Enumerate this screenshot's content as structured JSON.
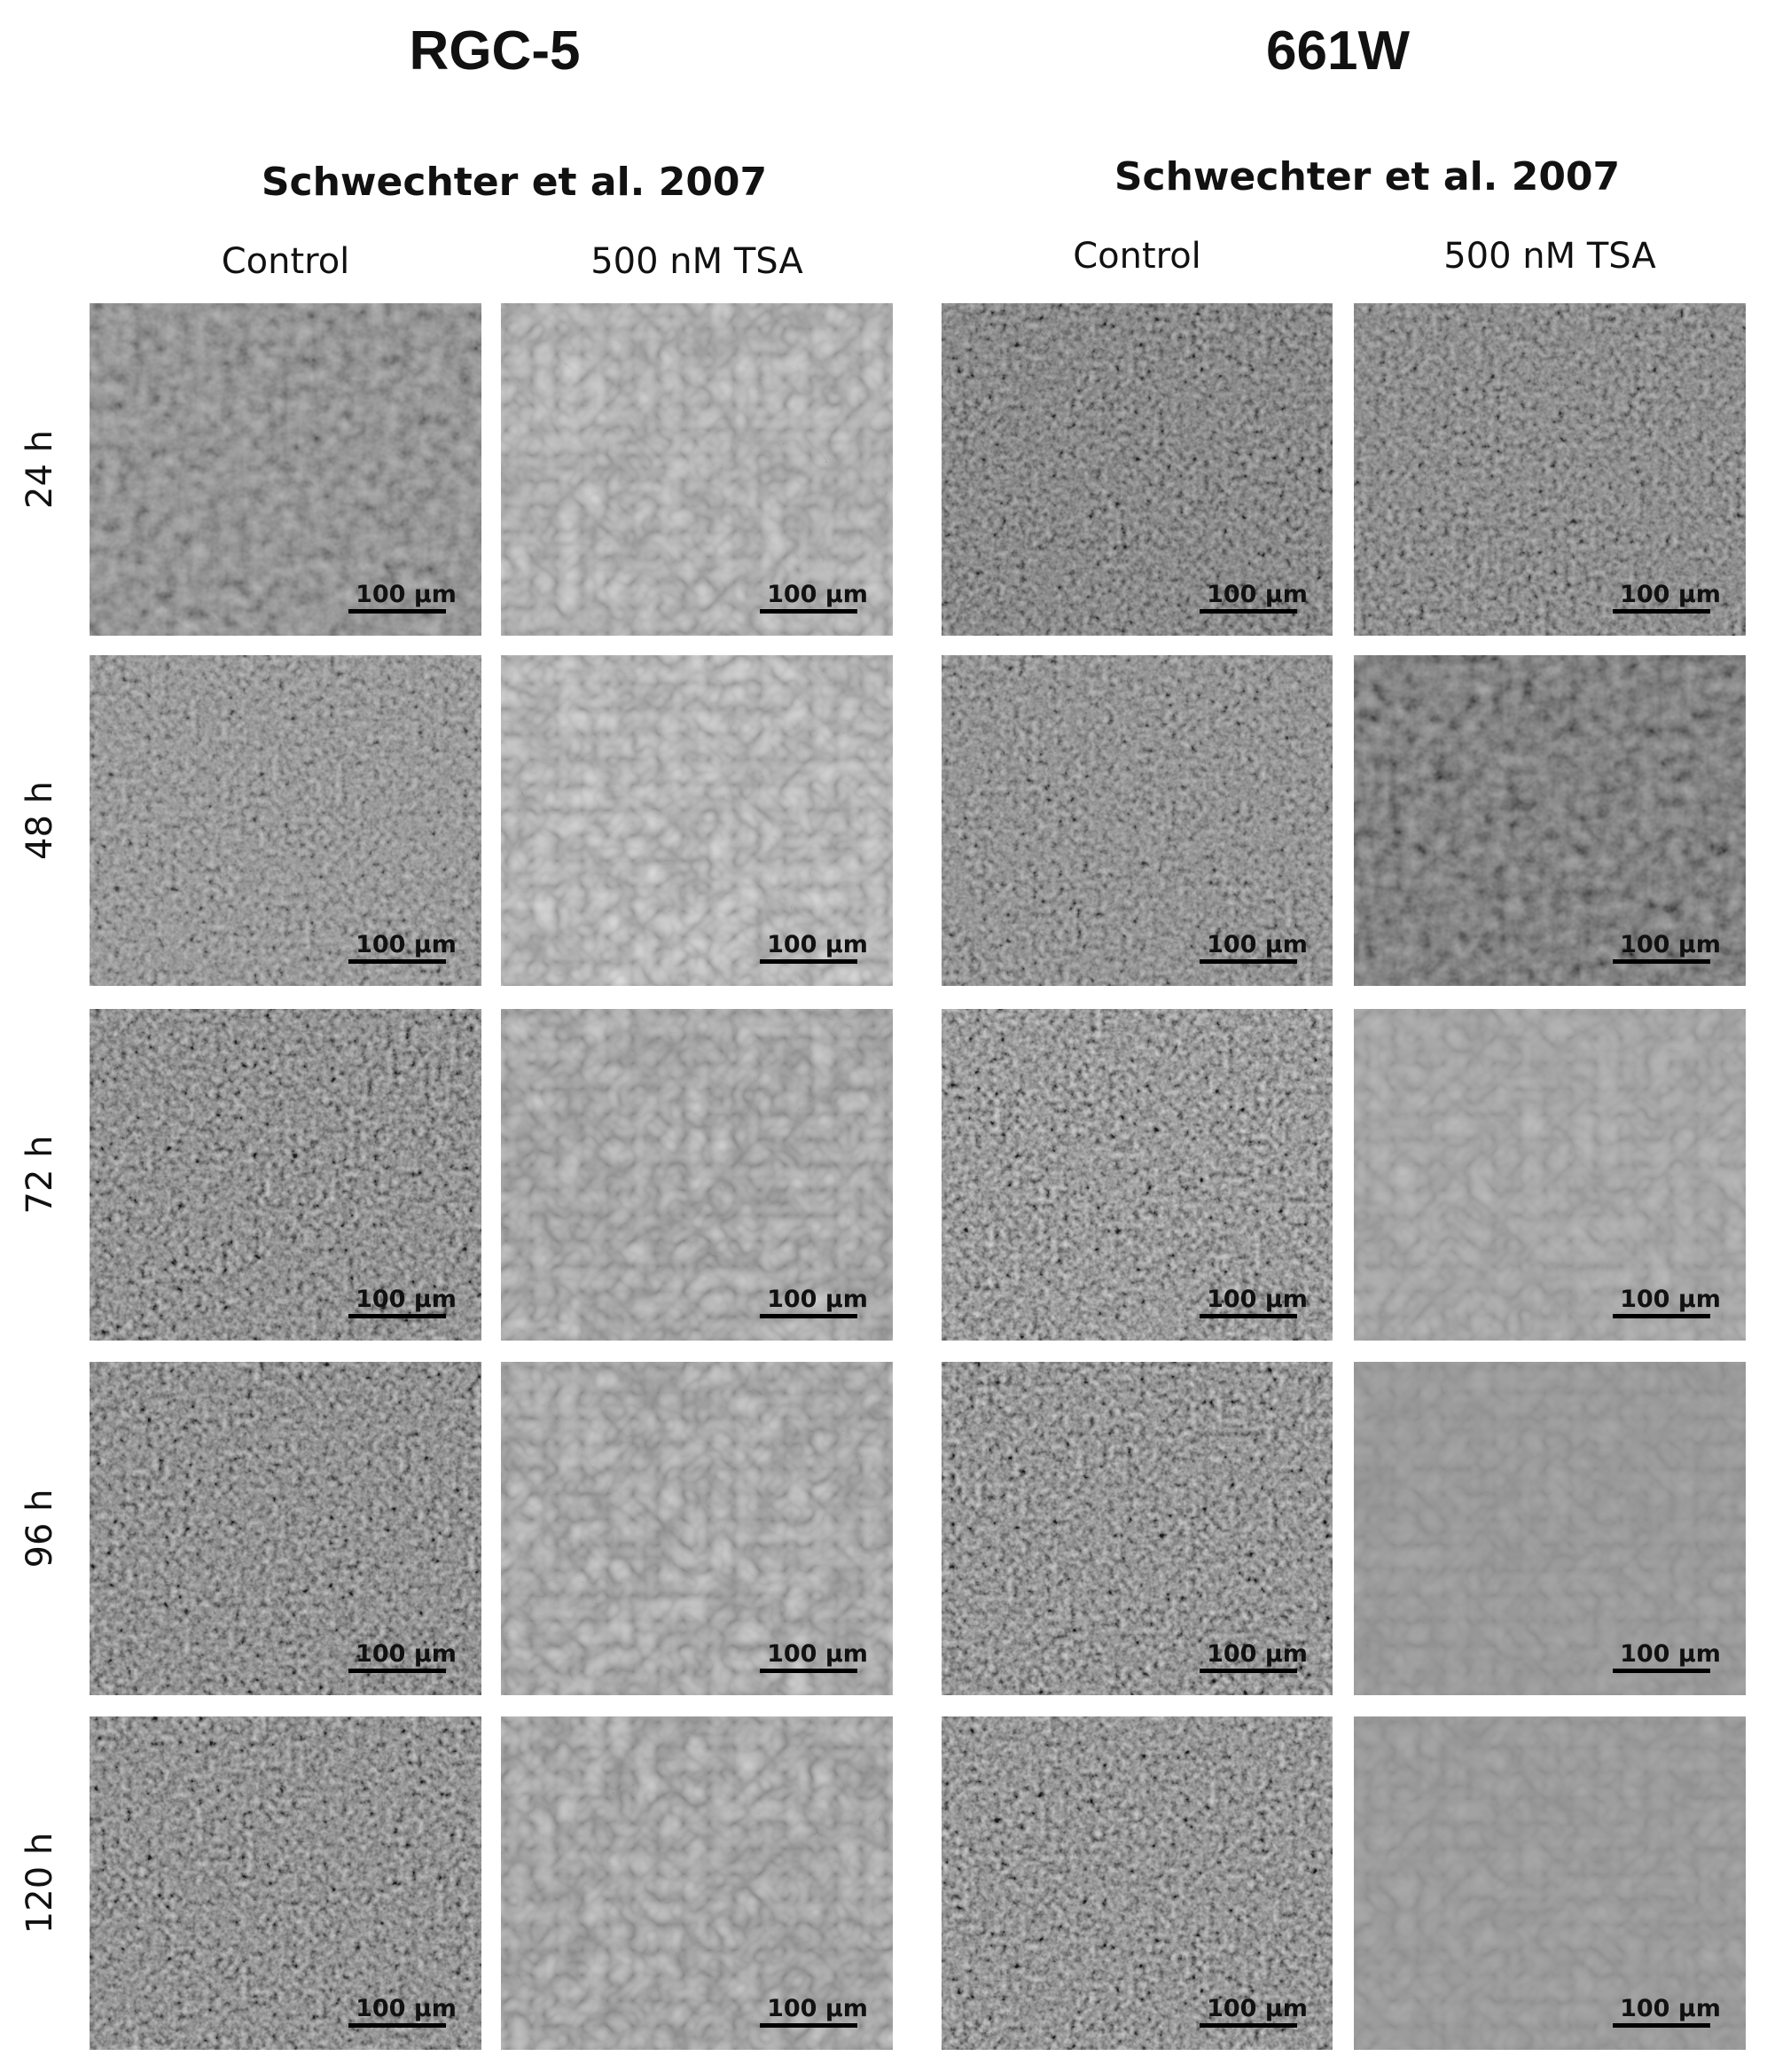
{
  "groups": [
    {
      "title": "RGC-5",
      "subtitle": "Schwechter et al. 2007",
      "columns": [
        "Control",
        "500 nM TSA"
      ]
    },
    {
      "title": "661W",
      "subtitle": "Schwechter et al. 2007",
      "columns": [
        "Control",
        "500 nM TSA"
      ]
    }
  ],
  "rows": [
    "24 h",
    "48 h",
    "72 h",
    "96 h",
    "120 h"
  ],
  "scale_bar": "100 µm"
}
